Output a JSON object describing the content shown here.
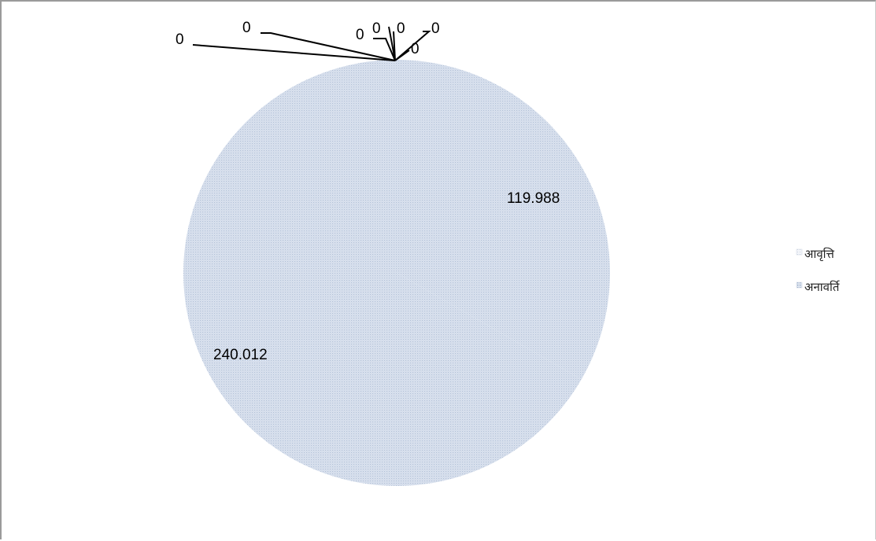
{
  "chart_data": {
    "type": "pie",
    "slices": [
      {
        "legend": "आवृत्ति",
        "value": 119.988,
        "label": "119.988",
        "color": "#dce4ef"
      },
      {
        "legend": "अनावर्ति",
        "value": 240.012,
        "label": "240.012",
        "color": "#d2dcec"
      }
    ],
    "zero_labels": [
      "0",
      "0",
      "0",
      "0",
      "0",
      "0",
      "0"
    ],
    "legend": [
      "आवृत्ति",
      "अनावर्ति"
    ],
    "legend_position": "right",
    "title": "",
    "fill_pattern": "fine dotted texture",
    "colors": {
      "slice_fill": "#d2dcec",
      "pattern_dot": "#b4c3da",
      "leader_lines": "#000000"
    }
  }
}
